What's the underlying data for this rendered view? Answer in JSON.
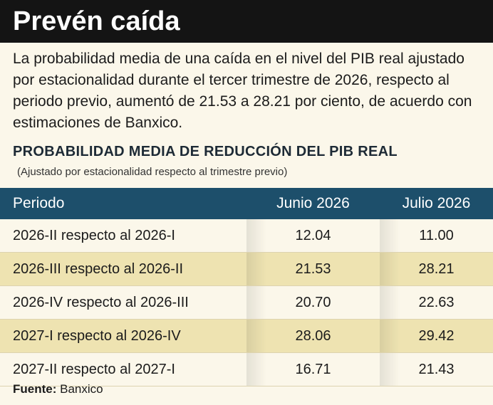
{
  "header": {
    "title": "Prevén caída"
  },
  "intro": "La probabilidad media de una caída en el nivel del PIB real ajustado por estacionalidad durante el tercer trimestre de 2026, respecto al periodo previo, aumentó de 21.53 a 28.21 por ciento, de acuerdo con estimaciones de Banxico.",
  "table": {
    "title": "PROBABILIDAD MEDIA DE REDUCCIÓN DEL PIB REAL",
    "subtitle": "(Ajustado por estacionalidad respecto al trimestre previo)",
    "columns": [
      "Periodo",
      "Junio 2026",
      "Julio 2026"
    ],
    "rows": [
      [
        "2026-II respecto al 2026-I",
        "12.04",
        "11.00"
      ],
      [
        "2026-III respecto al 2026-II",
        "21.53",
        "28.21"
      ],
      [
        "2026-IV respecto al 2026-III",
        "20.70",
        "22.63"
      ],
      [
        "2027-I respecto al 2026-IV",
        "28.06",
        "29.42"
      ],
      [
        "2027-II respecto al 2027-I",
        "16.71",
        "21.43"
      ]
    ]
  },
  "source": {
    "label": "Fuente:",
    "text": "Banxico"
  }
}
